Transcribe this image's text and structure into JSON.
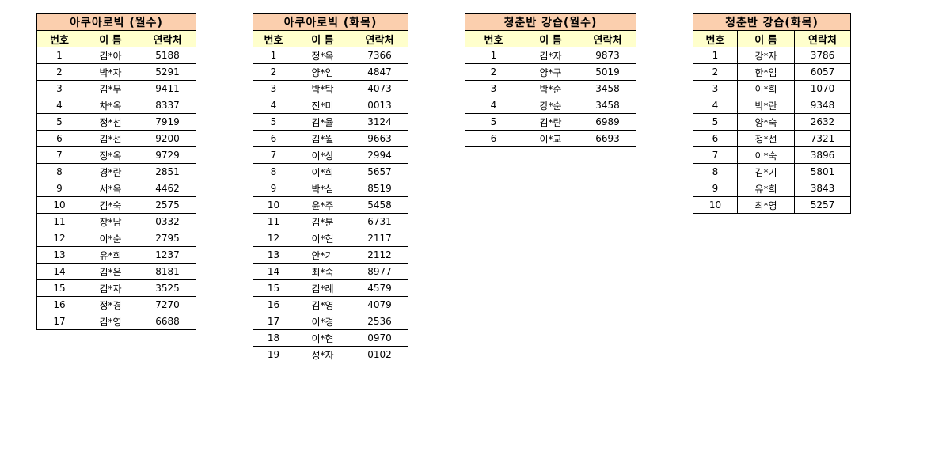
{
  "colors": {
    "title_bg": "#fbcfae",
    "header_bg": "#ffffcc"
  },
  "headers": [
    "번호",
    "이 름",
    "연락처"
  ],
  "tables": [
    {
      "title": "아쿠아로빅 (월수)",
      "rows": [
        [
          "1",
          "김*아",
          "5188"
        ],
        [
          "2",
          "박*자",
          "5291"
        ],
        [
          "3",
          "김*무",
          "9411"
        ],
        [
          "4",
          "차*옥",
          "8337"
        ],
        [
          "5",
          "정*선",
          "7919"
        ],
        [
          "6",
          "김*선",
          "9200"
        ],
        [
          "7",
          "정*옥",
          "9729"
        ],
        [
          "8",
          "경*란",
          "2851"
        ],
        [
          "9",
          "서*옥",
          "4462"
        ],
        [
          "10",
          "김*숙",
          "2575"
        ],
        [
          "11",
          "장*남",
          "0332"
        ],
        [
          "12",
          "이*순",
          "2795"
        ],
        [
          "13",
          "유*희",
          "1237"
        ],
        [
          "14",
          "김*은",
          "8181"
        ],
        [
          "15",
          "김*자",
          "3525"
        ],
        [
          "16",
          "정*경",
          "7270"
        ],
        [
          "17",
          "김*영",
          "6688"
        ]
      ]
    },
    {
      "title": "아쿠아로빅 (화목)",
      "rows": [
        [
          "1",
          "정*옥",
          "7366"
        ],
        [
          "2",
          "양*임",
          "4847"
        ],
        [
          "3",
          "박*탁",
          "4073"
        ],
        [
          "4",
          "전*미",
          "0013"
        ],
        [
          "5",
          "김*율",
          "3124"
        ],
        [
          "6",
          "김*월",
          "9663"
        ],
        [
          "7",
          "이*상",
          "2994"
        ],
        [
          "8",
          "이*희",
          "5657"
        ],
        [
          "9",
          "박*심",
          "8519"
        ],
        [
          "10",
          "윤*주",
          "5458"
        ],
        [
          "11",
          "김*분",
          "6731"
        ],
        [
          "12",
          "이*현",
          "2117"
        ],
        [
          "13",
          "안*기",
          "2112"
        ],
        [
          "14",
          "최*숙",
          "8977"
        ],
        [
          "15",
          "김*례",
          "4579"
        ],
        [
          "16",
          "김*영",
          "4079"
        ],
        [
          "17",
          "이*경",
          "2536"
        ],
        [
          "18",
          "이*현",
          "0970"
        ],
        [
          "19",
          "성*자",
          "0102"
        ]
      ]
    },
    {
      "title": "청춘반 강습(월수)",
      "rows": [
        [
          "1",
          "김*자",
          "9873"
        ],
        [
          "2",
          "양*구",
          "5019"
        ],
        [
          "3",
          "박*순",
          "3458"
        ],
        [
          "4",
          "강*순",
          "3458"
        ],
        [
          "5",
          "김*란",
          "6989"
        ],
        [
          "6",
          "이*교",
          "6693"
        ]
      ]
    },
    {
      "title": "청춘반 강습(화목)",
      "rows": [
        [
          "1",
          "강*자",
          "3786"
        ],
        [
          "2",
          "한*임",
          "6057"
        ],
        [
          "3",
          "이*희",
          "1070"
        ],
        [
          "4",
          "박*란",
          "9348"
        ],
        [
          "5",
          "양*숙",
          "2632"
        ],
        [
          "6",
          "정*선",
          "7321"
        ],
        [
          "7",
          "이*숙",
          "3896"
        ],
        [
          "8",
          "김*기",
          "5801"
        ],
        [
          "9",
          "유*희",
          "3843"
        ],
        [
          "10",
          "최*영",
          "5257"
        ]
      ]
    }
  ]
}
